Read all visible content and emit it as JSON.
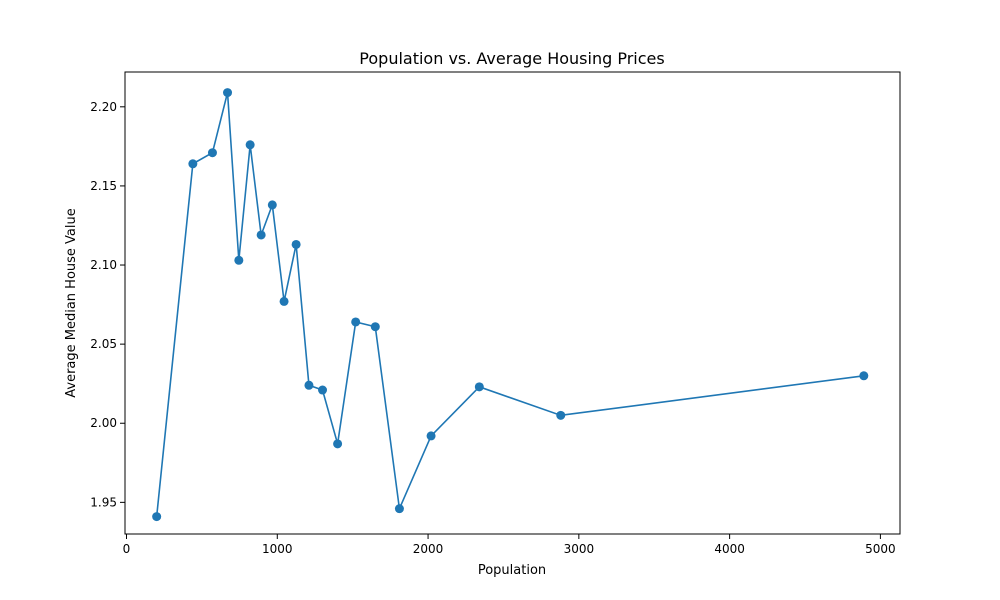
{
  "chart_data": {
    "type": "line",
    "title": "Population vs. Average Housing Prices",
    "xlabel": "Population",
    "ylabel": "Average Median House Value",
    "xlim": [
      -10,
      5130
    ],
    "ylim": [
      1.93,
      2.222
    ],
    "xticks": [
      0,
      1000,
      2000,
      3000,
      4000,
      5000
    ],
    "xtick_labels": [
      "0",
      "1000",
      "2000",
      "3000",
      "4000",
      "5000"
    ],
    "yticks": [
      1.95,
      2.0,
      2.05,
      2.1,
      2.15,
      2.2
    ],
    "ytick_labels": [
      "1.95",
      "2.00",
      "2.05",
      "2.10",
      "2.15",
      "2.20"
    ],
    "grid": false,
    "color": "#1f77b4",
    "marker": "circle",
    "series": [
      {
        "x": [
          200,
          440,
          570,
          670,
          745,
          820,
          893,
          967,
          1045,
          1125,
          1210,
          1300,
          1400,
          1520,
          1650,
          1810,
          2020,
          2340,
          2880,
          4890
        ],
        "values": [
          1.941,
          2.164,
          2.171,
          2.209,
          2.103,
          2.176,
          2.119,
          2.138,
          2.077,
          2.113,
          2.024,
          2.021,
          1.987,
          2.064,
          2.061,
          1.946,
          1.992,
          2.023,
          2.005,
          2.03
        ]
      }
    ]
  }
}
